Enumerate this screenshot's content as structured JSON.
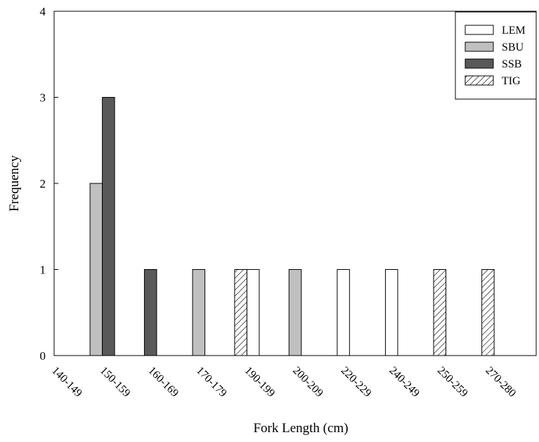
{
  "chart_data": {
    "type": "bar",
    "xlabel": "Fork Length (cm)",
    "ylabel": "Frequency",
    "ylim": [
      0,
      4
    ],
    "yticks": [
      0,
      1,
      2,
      3,
      4
    ],
    "categories": [
      "140-149",
      "150-159",
      "160-169",
      "170-179",
      "190-199",
      "200-209",
      "220-229",
      "240-249",
      "250-259",
      "270-280"
    ],
    "legend_position": "top-right",
    "series": [
      {
        "name": "LEM",
        "fill": "#ffffff",
        "pattern": "none",
        "values": [
          0,
          0,
          0,
          0,
          1,
          0,
          1,
          1,
          0,
          0
        ]
      },
      {
        "name": "SBU",
        "fill": "#c0c0c0",
        "pattern": "none",
        "values": [
          0,
          2,
          0,
          1,
          0,
          1,
          0,
          0,
          0,
          0
        ]
      },
      {
        "name": "SSB",
        "fill": "#595959",
        "pattern": "none",
        "values": [
          0,
          3,
          1,
          0,
          0,
          0,
          0,
          0,
          0,
          0
        ]
      },
      {
        "name": "TIG",
        "fill": "#ffffff",
        "pattern": "diagonal-hatch",
        "values": [
          0,
          0,
          0,
          0,
          1,
          0,
          0,
          0,
          1,
          1
        ]
      }
    ]
  }
}
